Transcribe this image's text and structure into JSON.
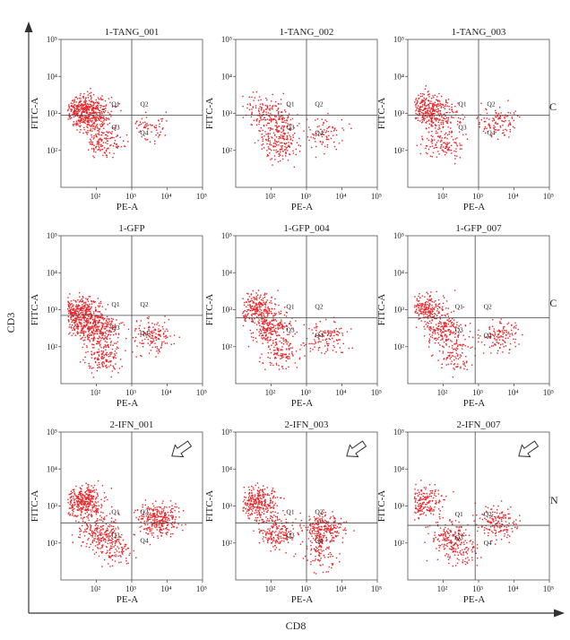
{
  "figure": {
    "y_axis_label": "CD3",
    "x_axis_label": "CD8",
    "row_labels": [
      "BC",
      "NC",
      "IFN"
    ]
  },
  "colors": {
    "dots": "#e8262a",
    "axis": "#333333",
    "gate": "#444444",
    "frame": "#555555"
  },
  "icons": {
    "arrow": "hollow-arrow-icon"
  },
  "chart_data": [
    {
      "type": "scatter",
      "title": "1-TANG_001",
      "xlabel": "PE-A",
      "ylabel": "FITC-A",
      "xscale": "log",
      "yscale": "log",
      "xlim": [
        10,
        100000
      ],
      "ylim": [
        10,
        100000
      ],
      "xticks": [
        "10²",
        "10³",
        "10⁴",
        "10⁵"
      ],
      "yticks": [
        "10²",
        "10³",
        "10⁴",
        "10⁵"
      ],
      "quadrant_labels": [
        "Q1",
        "Q2",
        "Q3",
        "Q4"
      ],
      "gate": {
        "x": 1000,
        "y": 900
      },
      "group": "BC",
      "populations": [
        {
          "x": 40,
          "y": 1300,
          "n": 320
        },
        {
          "x": 80,
          "y": 1000,
          "n": 200
        },
        {
          "x": 3500,
          "y": 400,
          "n": 60
        },
        {
          "x": 150,
          "y": 200,
          "n": 150
        }
      ],
      "arrow": false
    },
    {
      "type": "scatter",
      "title": "1-TANG_002",
      "xlabel": "PE-A",
      "ylabel": "FITC-A",
      "xscale": "log",
      "yscale": "log",
      "xlim": [
        10,
        100000
      ],
      "ylim": [
        10,
        100000
      ],
      "xticks": [
        "10²",
        "10³",
        "10⁴",
        "10⁵"
      ],
      "yticks": [
        "10²",
        "10³",
        "10⁴",
        "10⁵"
      ],
      "quadrant_labels": [
        "Q1",
        "Q2",
        "Q3",
        "Q4"
      ],
      "gate": {
        "x": 1000,
        "y": 900
      },
      "group": "BC",
      "populations": [
        {
          "x": 60,
          "y": 1200,
          "n": 120
        },
        {
          "x": 150,
          "y": 500,
          "n": 120
        },
        {
          "x": 3000,
          "y": 300,
          "n": 80
        },
        {
          "x": 200,
          "y": 150,
          "n": 140
        }
      ],
      "arrow": false
    },
    {
      "type": "scatter",
      "title": "1-TANG_003",
      "xlabel": "PE-A",
      "ylabel": "FITC-A",
      "xscale": "log",
      "yscale": "log",
      "xlim": [
        10,
        100000
      ],
      "ylim": [
        10,
        100000
      ],
      "xticks": [
        "10²",
        "10³",
        "10⁴",
        "10⁵"
      ],
      "yticks": [
        "10²",
        "10³",
        "10⁴",
        "10⁵"
      ],
      "quadrant_labels": [
        "Q1",
        "Q2",
        "Q3",
        "Q4"
      ],
      "gate": {
        "x": 1000,
        "y": 900
      },
      "group": "BC",
      "populations": [
        {
          "x": 30,
          "y": 1500,
          "n": 260
        },
        {
          "x": 80,
          "y": 800,
          "n": 120
        },
        {
          "x": 3500,
          "y": 600,
          "n": 110
        },
        {
          "x": 100,
          "y": 150,
          "n": 120
        }
      ],
      "arrow": false
    },
    {
      "type": "scatter",
      "title": "1-GFP",
      "xlabel": "PE-A",
      "ylabel": "FITC-A",
      "xscale": "log",
      "yscale": "log",
      "xlim": [
        10,
        100000
      ],
      "ylim": [
        10,
        100000
      ],
      "xticks": [
        "10²",
        "10³",
        "10⁴",
        "10⁵"
      ],
      "yticks": [
        "10²",
        "10³",
        "10⁴",
        "10⁵"
      ],
      "quadrant_labels": [
        "Q1",
        "Q2",
        "Q3",
        "Q4"
      ],
      "gate": {
        "x": 1000,
        "y": 700
      },
      "group": "NC",
      "populations": [
        {
          "x": 30,
          "y": 800,
          "n": 420
        },
        {
          "x": 100,
          "y": 300,
          "n": 300
        },
        {
          "x": 3500,
          "y": 200,
          "n": 150
        },
        {
          "x": 150,
          "y": 60,
          "n": 150
        }
      ],
      "arrow": false
    },
    {
      "type": "scatter",
      "title": "1-GFP_004",
      "xlabel": "PE-A",
      "ylabel": "FITC-A",
      "xscale": "log",
      "yscale": "log",
      "xlim": [
        10,
        100000
      ],
      "ylim": [
        10,
        100000
      ],
      "xticks": [
        "10²",
        "10³",
        "10⁴",
        "10⁵"
      ],
      "yticks": [
        "10²",
        "10³",
        "10⁴",
        "10⁵"
      ],
      "quadrant_labels": [
        "Q1",
        "Q2",
        "Q3",
        "Q4"
      ],
      "gate": {
        "x": 1000,
        "y": 600
      },
      "group": "NC",
      "populations": [
        {
          "x": 40,
          "y": 1100,
          "n": 250
        },
        {
          "x": 100,
          "y": 300,
          "n": 220
        },
        {
          "x": 3500,
          "y": 180,
          "n": 120
        },
        {
          "x": 200,
          "y": 60,
          "n": 100
        }
      ],
      "arrow": false
    },
    {
      "type": "scatter",
      "title": "1-GFP_007",
      "xlabel": "PE-A",
      "ylabel": "FITC-A",
      "xscale": "log",
      "yscale": "log",
      "xlim": [
        10,
        100000
      ],
      "ylim": [
        10,
        100000
      ],
      "xticks": [
        "10²",
        "10³",
        "10⁴",
        "10⁵"
      ],
      "yticks": [
        "10²",
        "10³",
        "10⁴",
        "10⁵"
      ],
      "quadrant_labels": [
        "Q1",
        "Q2",
        "Q3",
        "Q4"
      ],
      "gate": {
        "x": 800,
        "y": 600
      },
      "group": "NC",
      "populations": [
        {
          "x": 30,
          "y": 1100,
          "n": 220
        },
        {
          "x": 100,
          "y": 300,
          "n": 180
        },
        {
          "x": 3500,
          "y": 200,
          "n": 130
        },
        {
          "x": 200,
          "y": 60,
          "n": 100
        }
      ],
      "arrow": false
    },
    {
      "type": "scatter",
      "title": "2-IFN_001",
      "xlabel": "PE-A",
      "ylabel": "FITC-A",
      "xscale": "log",
      "yscale": "log",
      "xlim": [
        10,
        100000
      ],
      "ylim": [
        10,
        100000
      ],
      "xticks": [
        "10²",
        "10³",
        "10⁴",
        "10⁵"
      ],
      "yticks": [
        "10²",
        "10³",
        "10⁴",
        "10⁵"
      ],
      "quadrant_labels": [
        "Q1",
        "Q2",
        "Q3",
        "Q4"
      ],
      "gate": {
        "x": 1000,
        "y": 350
      },
      "group": "IFN",
      "populations": [
        {
          "x": 40,
          "y": 1300,
          "n": 360
        },
        {
          "x": 5500,
          "y": 450,
          "n": 300
        },
        {
          "x": 120,
          "y": 200,
          "n": 200
        },
        {
          "x": 300,
          "y": 60,
          "n": 100
        }
      ],
      "arrow": true
    },
    {
      "type": "scatter",
      "title": "2-IFN_003",
      "xlabel": "PE-A",
      "ylabel": "FITC-A",
      "xscale": "log",
      "yscale": "log",
      "xlim": [
        10,
        100000
      ],
      "ylim": [
        10,
        100000
      ],
      "xticks": [
        "10²",
        "10³",
        "10⁴",
        "10⁵"
      ],
      "yticks": [
        "10²",
        "10³",
        "10⁴",
        "10⁵"
      ],
      "quadrant_labels": [
        "Q1",
        "Q2",
        "Q3",
        "Q4"
      ],
      "gate": {
        "x": 1000,
        "y": 350
      },
      "group": "IFN",
      "populations": [
        {
          "x": 40,
          "y": 1200,
          "n": 300
        },
        {
          "x": 3000,
          "y": 250,
          "n": 250
        },
        {
          "x": 150,
          "y": 200,
          "n": 200
        },
        {
          "x": 2500,
          "y": 50,
          "n": 80
        }
      ],
      "arrow": true
    },
    {
      "type": "scatter",
      "title": "2-IFN_007",
      "xlabel": "PE-A",
      "ylabel": "FITC-A",
      "xscale": "log",
      "yscale": "log",
      "xlim": [
        10,
        100000
      ],
      "ylim": [
        10,
        100000
      ],
      "xticks": [
        "10²",
        "10³",
        "10⁴",
        "10⁵"
      ],
      "yticks": [
        "10²",
        "10³",
        "10⁴",
        "10⁵"
      ],
      "quadrant_labels": [
        "Q1",
        "Q2",
        "Q3",
        "Q4"
      ],
      "gate": {
        "x": 800,
        "y": 300
      },
      "group": "IFN",
      "populations": [
        {
          "x": 30,
          "y": 1300,
          "n": 200
        },
        {
          "x": 3500,
          "y": 350,
          "n": 160
        },
        {
          "x": 150,
          "y": 150,
          "n": 150
        },
        {
          "x": 300,
          "y": 60,
          "n": 80
        }
      ],
      "arrow": true
    }
  ]
}
